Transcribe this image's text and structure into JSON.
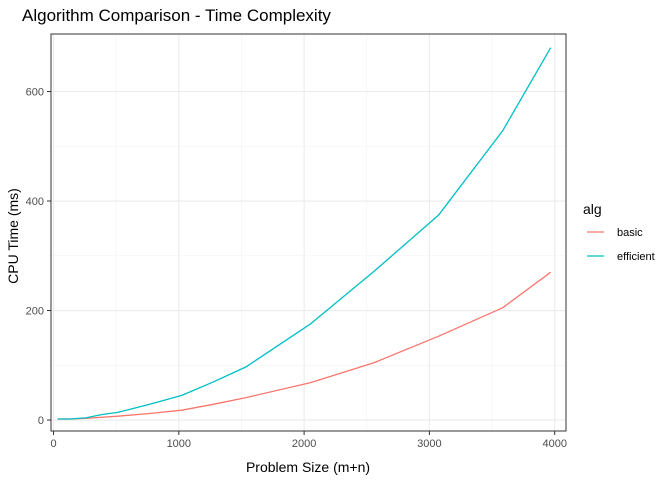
{
  "chart_data": {
    "type": "line",
    "title": "Algorithm Comparison - Time Complexity",
    "xlabel": "Problem Size (m+n)",
    "ylabel": "CPU Time (ms)",
    "xlim": [
      -20,
      4090
    ],
    "ylim": [
      -20,
      705
    ],
    "x_ticks": [
      0,
      1000,
      2000,
      3000,
      4000
    ],
    "x_tick_labels": [
      "0",
      "1000",
      "2000",
      "3000",
      "4000"
    ],
    "y_ticks": [
      0,
      200,
      400,
      600
    ],
    "y_tick_labels": [
      "0",
      "200",
      "400",
      "600"
    ],
    "grid": true,
    "legend": {
      "title": "alg",
      "position": "right"
    },
    "series": [
      {
        "name": "basic",
        "color": "#F8766D",
        "x": [
          32,
          128,
          256,
          512,
          768,
          1024,
          1280,
          1536,
          2048,
          2560,
          3072,
          3584,
          3968
        ],
        "y": [
          2,
          2,
          3,
          7,
          12,
          18,
          29,
          41,
          68,
          105,
          153,
          205,
          270
        ]
      },
      {
        "name": "efficient",
        "color": "#00BFC4",
        "x": [
          32,
          128,
          256,
          384,
          512,
          768,
          1024,
          1280,
          1536,
          2048,
          2560,
          3072,
          3584,
          3968
        ],
        "y": [
          2,
          2,
          4,
          10,
          14,
          29,
          45,
          70,
          97,
          175,
          272,
          374,
          528,
          680
        ]
      }
    ]
  }
}
